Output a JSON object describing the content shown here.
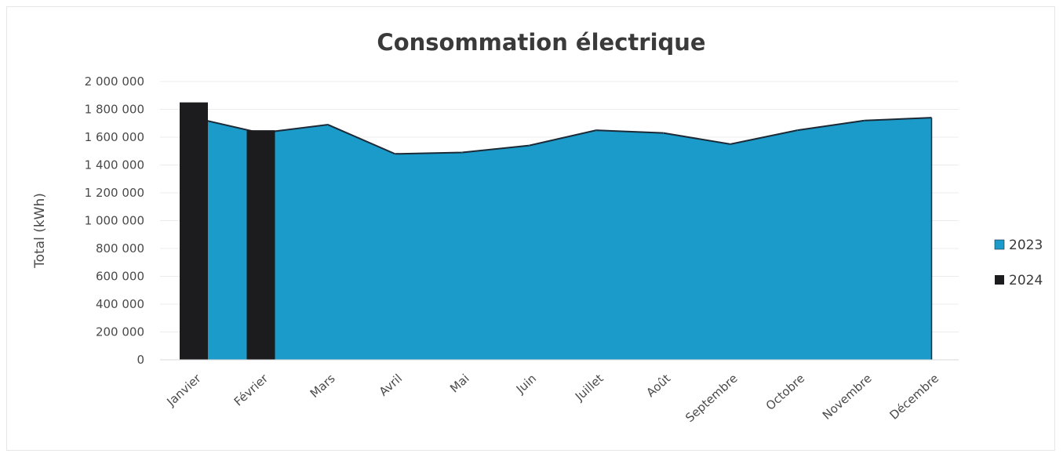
{
  "chart_data": {
    "type": "area",
    "title": "Consommation électrique",
    "xlabel": "",
    "ylabel": "Total (kWh)",
    "ylim": [
      0,
      2000000
    ],
    "yticks": [
      0,
      200000,
      400000,
      600000,
      800000,
      1000000,
      1200000,
      1400000,
      1600000,
      1800000,
      2000000
    ],
    "ytick_labels": [
      "0",
      "200 000",
      "400 000",
      "600 000",
      "800 000",
      "1 000 000",
      "1 200 000",
      "1 400 000",
      "1 600 000",
      "1 800 000",
      "2 000 000"
    ],
    "categories": [
      "Janvier",
      "Février",
      "Mars",
      "Avril",
      "Mai",
      "Juin",
      "Juillet",
      "Août",
      "Septembre",
      "Octobre",
      "Novembre",
      "Décembre"
    ],
    "grid": true,
    "legend_position": "right",
    "series": [
      {
        "name": "2023",
        "type": "area",
        "color": "#1a9bc9",
        "values": [
          1740000,
          1630000,
          1690000,
          1480000,
          1490000,
          1540000,
          1650000,
          1630000,
          1550000,
          1650000,
          1720000,
          1740000
        ]
      },
      {
        "name": "2024",
        "type": "bar",
        "color": "#1c1c1e",
        "values": [
          1850000,
          1650000,
          null,
          null,
          null,
          null,
          null,
          null,
          null,
          null,
          null,
          null
        ]
      }
    ]
  }
}
